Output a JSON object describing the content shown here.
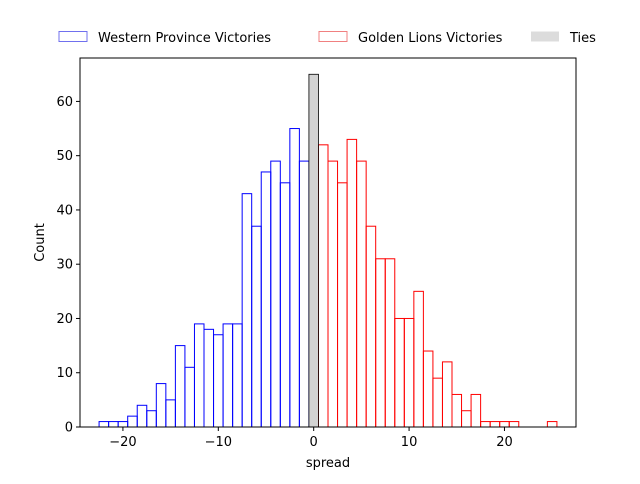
{
  "chart_data": {
    "type": "bar",
    "title": "",
    "xlabel": "spread",
    "ylabel": "Count",
    "xlim": [
      -24.5,
      27.5
    ],
    "ylim": [
      0,
      68
    ],
    "xticks": [
      -20,
      -10,
      0,
      10,
      20
    ],
    "yticks": [
      0,
      10,
      20,
      30,
      40,
      50,
      60
    ],
    "bin_width": 1,
    "legend_position": "top, outside plot, horizontal",
    "series": [
      {
        "name": "Western Province Victories",
        "style": "outline",
        "color": "#0000ff",
        "legend_color": "#7070ee",
        "bins": [
          {
            "x": -22,
            "count": 1
          },
          {
            "x": -21,
            "count": 1
          },
          {
            "x": -20,
            "count": 1
          },
          {
            "x": -19,
            "count": 2
          },
          {
            "x": -18,
            "count": 4
          },
          {
            "x": -17,
            "count": 3
          },
          {
            "x": -16,
            "count": 8
          },
          {
            "x": -15,
            "count": 5
          },
          {
            "x": -14,
            "count": 15
          },
          {
            "x": -13,
            "count": 11
          },
          {
            "x": -12,
            "count": 19
          },
          {
            "x": -11,
            "count": 18
          },
          {
            "x": -10,
            "count": 17
          },
          {
            "x": -9,
            "count": 19
          },
          {
            "x": -8,
            "count": 19
          },
          {
            "x": -7,
            "count": 43
          },
          {
            "x": -6,
            "count": 37
          },
          {
            "x": -5,
            "count": 47
          },
          {
            "x": -4,
            "count": 49
          },
          {
            "x": -3,
            "count": 45
          },
          {
            "x": -2,
            "count": 55
          },
          {
            "x": -1,
            "count": 49
          }
        ]
      },
      {
        "name": "Golden Lions Victories",
        "style": "outline",
        "color": "#ff0000",
        "legend_color": "#f08080",
        "bins": [
          {
            "x": 1,
            "count": 52
          },
          {
            "x": 2,
            "count": 49
          },
          {
            "x": 3,
            "count": 45
          },
          {
            "x": 4,
            "count": 53
          },
          {
            "x": 5,
            "count": 49
          },
          {
            "x": 6,
            "count": 37
          },
          {
            "x": 7,
            "count": 31
          },
          {
            "x": 8,
            "count": 31
          },
          {
            "x": 9,
            "count": 20
          },
          {
            "x": 10,
            "count": 20
          },
          {
            "x": 11,
            "count": 25
          },
          {
            "x": 12,
            "count": 14
          },
          {
            "x": 13,
            "count": 9
          },
          {
            "x": 14,
            "count": 12
          },
          {
            "x": 15,
            "count": 6
          },
          {
            "x": 16,
            "count": 3
          },
          {
            "x": 17,
            "count": 6
          },
          {
            "x": 18,
            "count": 1
          },
          {
            "x": 19,
            "count": 1
          },
          {
            "x": 20,
            "count": 1
          },
          {
            "x": 21,
            "count": 1
          },
          {
            "x": 25,
            "count": 1
          }
        ]
      },
      {
        "name": "Ties",
        "style": "filled",
        "color": "#d3d3d3",
        "legend_color": "#dcdcdc",
        "bins": [
          {
            "x": 0,
            "count": 65
          }
        ]
      }
    ]
  }
}
